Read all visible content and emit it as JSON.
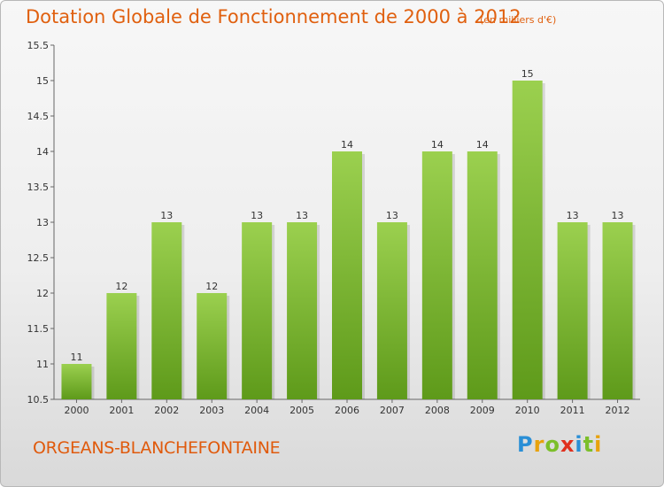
{
  "header": {
    "title": "Dotation Globale de Fonctionnement de 2000 à 2012",
    "unit": "(en milliers d'€)"
  },
  "footer": {
    "town": "ORGEANS-BLANCHEFONTAINE",
    "logo_letters": [
      "P",
      "r",
      "o",
      "x",
      "i",
      "t",
      "i"
    ],
    "logo_colors": [
      "#2a8fd6",
      "#e8a20c",
      "#7cbf2a",
      "#e0301e",
      "#2a8fd6",
      "#7cbf2a",
      "#e8a20c"
    ]
  },
  "chart_data": {
    "type": "bar",
    "categories": [
      "2000",
      "2001",
      "2002",
      "2003",
      "2004",
      "2005",
      "2006",
      "2007",
      "2008",
      "2009",
      "2010",
      "2011",
      "2012"
    ],
    "values": [
      11,
      12,
      13,
      12,
      13,
      13,
      14,
      13,
      14,
      14,
      15,
      13,
      13
    ],
    "data_labels": [
      "11",
      "12",
      "13",
      "12",
      "13",
      "13",
      "14",
      "13",
      "14",
      "14",
      "15",
      "13",
      "13"
    ],
    "title": "Dotation Globale de Fonctionnement de 2000 à 2012",
    "xlabel": "",
    "ylabel": "",
    "ylim": [
      10.5,
      15.5
    ],
    "yticks": [
      "10.5",
      "11",
      "11.5",
      "12",
      "12.5",
      "13",
      "13.5",
      "14",
      "14.5",
      "15",
      "15.5"
    ],
    "grid": false,
    "bar_color": "#8cc63f"
  }
}
